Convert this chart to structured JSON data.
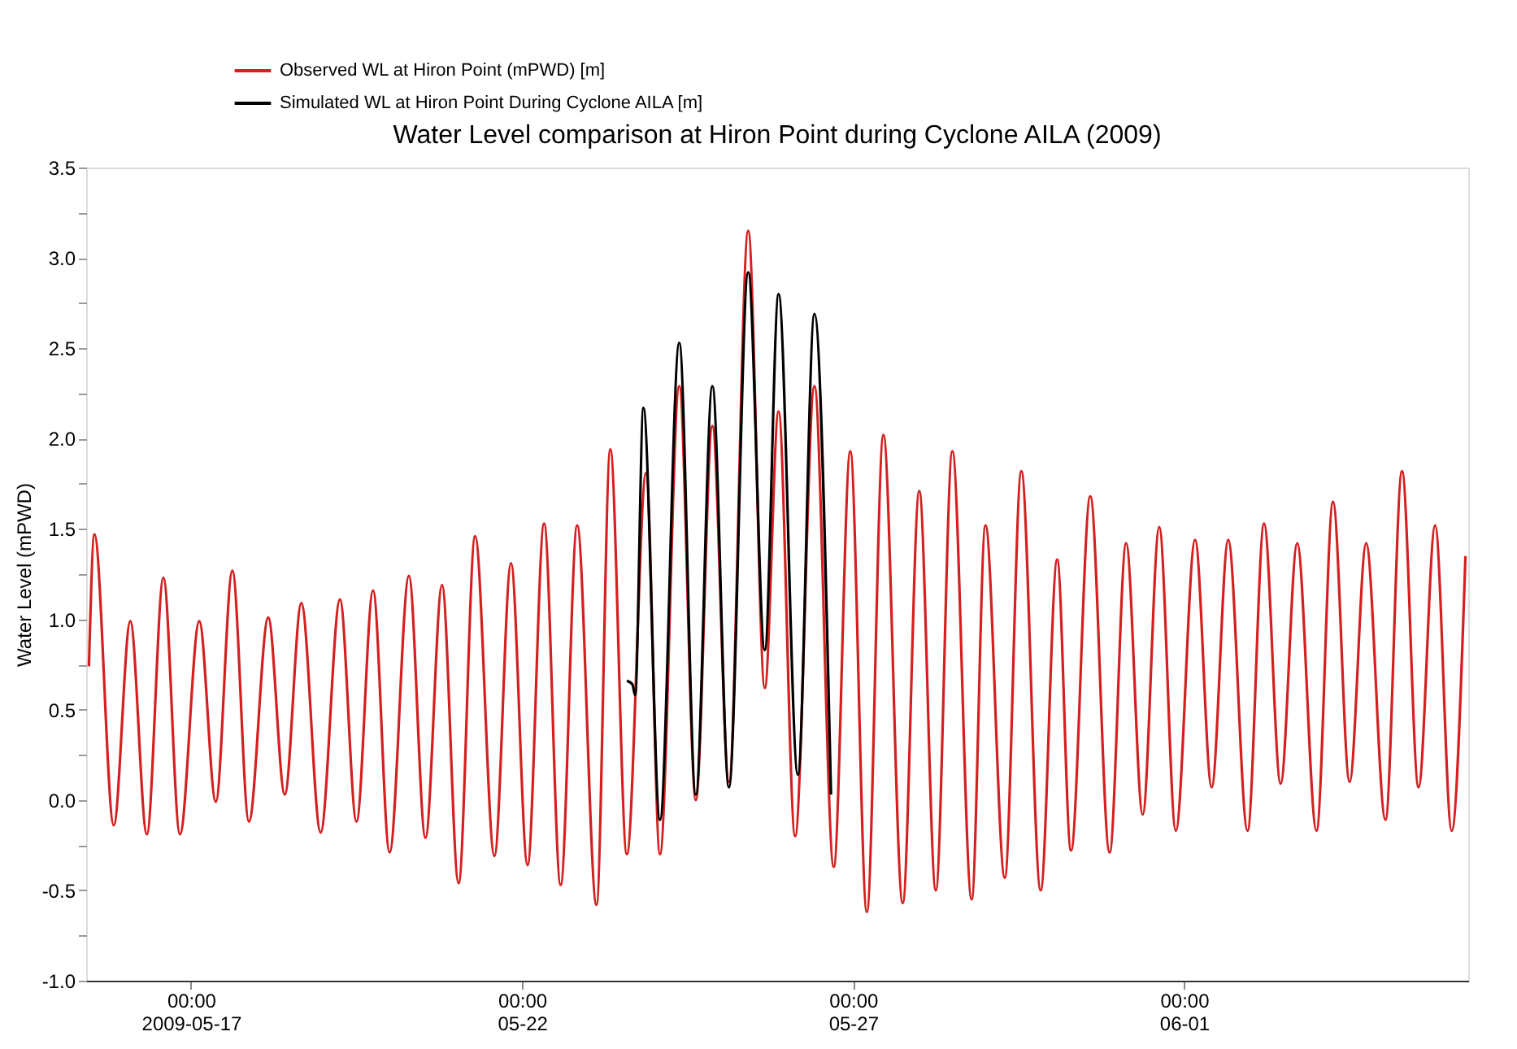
{
  "chart_data": {
    "type": "line",
    "title": "Water Level comparison at Hiron Point during Cyclone AILA (2009)",
    "ylabel": "Water Level (mPWD)",
    "xlim": [
      "2009-05-15T10:00",
      "2009-06-05T07:00"
    ],
    "ylim": [
      -1.0,
      3.5
    ],
    "xticks": [
      {
        "value": "2009-05-17T00:00",
        "label": "00:00\n2009-05-17"
      },
      {
        "value": "2009-05-22T00:00",
        "label": "00:00\n05-22"
      },
      {
        "value": "2009-05-27T00:00",
        "label": "00:00\n05-27"
      },
      {
        "value": "2009-06-01T00:00",
        "label": "00:00\n06-01"
      }
    ],
    "yticks": [
      {
        "value": -1,
        "label": "-1.0"
      },
      {
        "value": -0.75,
        "label": null
      },
      -0.5,
      {
        "value": -0.25,
        "label": null
      },
      {
        "value": 0,
        "label": "0.0"
      },
      {
        "value": 0.25,
        "label": null
      },
      0.5,
      {
        "value": 0.75,
        "label": null
      },
      {
        "value": 1,
        "label": "1.0"
      },
      {
        "value": 1.25,
        "label": null
      },
      1.5,
      {
        "value": 1.75,
        "label": null
      },
      {
        "value": 2,
        "label": "2.0"
      },
      {
        "value": 2.25,
        "label": null
      },
      2.5,
      {
        "value": 2.75,
        "label": null
      },
      {
        "value": 3,
        "label": "3.0"
      },
      {
        "value": 3.25,
        "label": null
      },
      3.5
    ],
    "grid": false,
    "legend": "top left",
    "line_style": "solid",
    "marker": "none",
    "series": [
      {
        "name": "Observed WL at Hiron Point (mPWD) [m]",
        "color": "#d42020",
        "x": [
          "2009-05-15T11:00",
          "2009-05-15T13:00",
          "2009-05-15T20:00",
          "2009-05-16T02:00",
          "2009-05-16T08:00",
          "2009-05-16T14:00",
          "2009-05-16T20:00",
          "2009-05-17T03:00",
          "2009-05-17T09:00",
          "2009-05-17T15:00",
          "2009-05-17T21:00",
          "2009-05-18T04:00",
          "2009-05-18T10:00",
          "2009-05-18T16:00",
          "2009-05-18T23:00",
          "2009-05-19T06:00",
          "2009-05-19T12:00",
          "2009-05-19T18:00",
          "2009-05-20T00:00",
          "2009-05-20T07:00",
          "2009-05-20T13:00",
          "2009-05-20T19:00",
          "2009-05-21T01:00",
          "2009-05-21T07:00",
          "2009-05-21T14:00",
          "2009-05-21T20:00",
          "2009-05-22T02:00",
          "2009-05-22T08:00",
          "2009-05-22T14:00",
          "2009-05-22T20:00",
          "2009-05-23T03:00",
          "2009-05-23T08:00",
          "2009-05-23T14:00",
          "2009-05-23T21:00",
          "2009-05-24T02:00",
          "2009-05-24T09:00",
          "2009-05-24T15:00",
          "2009-05-24T21:00",
          "2009-05-25T03:00",
          "2009-05-25T10:00",
          "2009-05-25T16:00",
          "2009-05-25T21:00",
          "2009-05-26T03:00",
          "2009-05-26T10:00",
          "2009-05-26T17:00",
          "2009-05-26T23:00",
          "2009-05-27T05:00",
          "2009-05-27T11:00",
          "2009-05-27T18:00",
          "2009-05-28T00:00",
          "2009-05-28T06:00",
          "2009-05-28T12:00",
          "2009-05-28T19:00",
          "2009-05-29T00:00",
          "2009-05-29T07:00",
          "2009-05-29T13:00",
          "2009-05-29T20:00",
          "2009-05-30T02:00",
          "2009-05-30T07:00",
          "2009-05-30T14:00",
          "2009-05-30T21:00",
          "2009-05-31T03:00",
          "2009-05-31T09:00",
          "2009-05-31T15:00",
          "2009-05-31T21:00",
          "2009-06-01T04:00",
          "2009-06-01T10:00",
          "2009-06-01T16:00",
          "2009-06-01T23:00",
          "2009-06-02T05:00",
          "2009-06-02T11:00",
          "2009-06-02T17:00",
          "2009-06-03T00:00",
          "2009-06-03T06:00",
          "2009-06-03T12:00",
          "2009-06-03T18:00",
          "2009-06-04T01:00",
          "2009-06-04T07:00",
          "2009-06-04T13:00",
          "2009-06-04T19:00",
          "2009-06-05T01:00",
          "2009-06-05T06:00"
        ],
        "values": [
          0.74,
          1.47,
          -0.14,
          0.99,
          -0.19,
          1.23,
          -0.19,
          0.99,
          -0.01,
          1.27,
          -0.12,
          1.01,
          0.03,
          1.09,
          -0.18,
          1.11,
          -0.12,
          1.16,
          -0.29,
          1.24,
          -0.21,
          1.19,
          -0.46,
          1.46,
          -0.31,
          1.31,
          -0.36,
          1.53,
          -0.47,
          1.52,
          -0.58,
          1.94,
          -0.3,
          1.81,
          -0.3,
          2.29,
          0.0,
          2.07,
          0.1,
          3.15,
          0.62,
          2.15,
          -0.2,
          2.29,
          -0.37,
          1.93,
          -0.62,
          2.02,
          -0.57,
          1.71,
          -0.5,
          1.93,
          -0.55,
          1.52,
          -0.43,
          1.82,
          -0.5,
          1.33,
          -0.28,
          1.68,
          -0.29,
          1.42,
          -0.08,
          1.51,
          -0.17,
          1.44,
          0.07,
          1.44,
          -0.17,
          1.53,
          0.09,
          1.42,
          -0.17,
          1.65,
          0.1,
          1.42,
          -0.11,
          1.82,
          0.07,
          1.52,
          -0.17,
          1.35
        ]
      },
      {
        "name": "Simulated WL at Hiron Point During Cyclone AILA [m]",
        "color": "#000000",
        "x": [
          "2009-05-23T14:00",
          "2009-05-23T16:00",
          "2009-05-23T17:00",
          "2009-05-23T20:00",
          "2009-05-24T02:00",
          "2009-05-24T09:00",
          "2009-05-24T15:00",
          "2009-05-24T21:00",
          "2009-05-25T03:00",
          "2009-05-25T10:00",
          "2009-05-25T16:00",
          "2009-05-25T21:00",
          "2009-05-26T04:00",
          "2009-05-26T10:00",
          "2009-05-26T16:00"
        ],
        "values": [
          0.66,
          0.64,
          0.58,
          2.17,
          -0.11,
          2.53,
          0.03,
          2.29,
          0.07,
          2.92,
          0.83,
          2.8,
          0.14,
          2.69,
          0.03
        ]
      }
    ]
  }
}
